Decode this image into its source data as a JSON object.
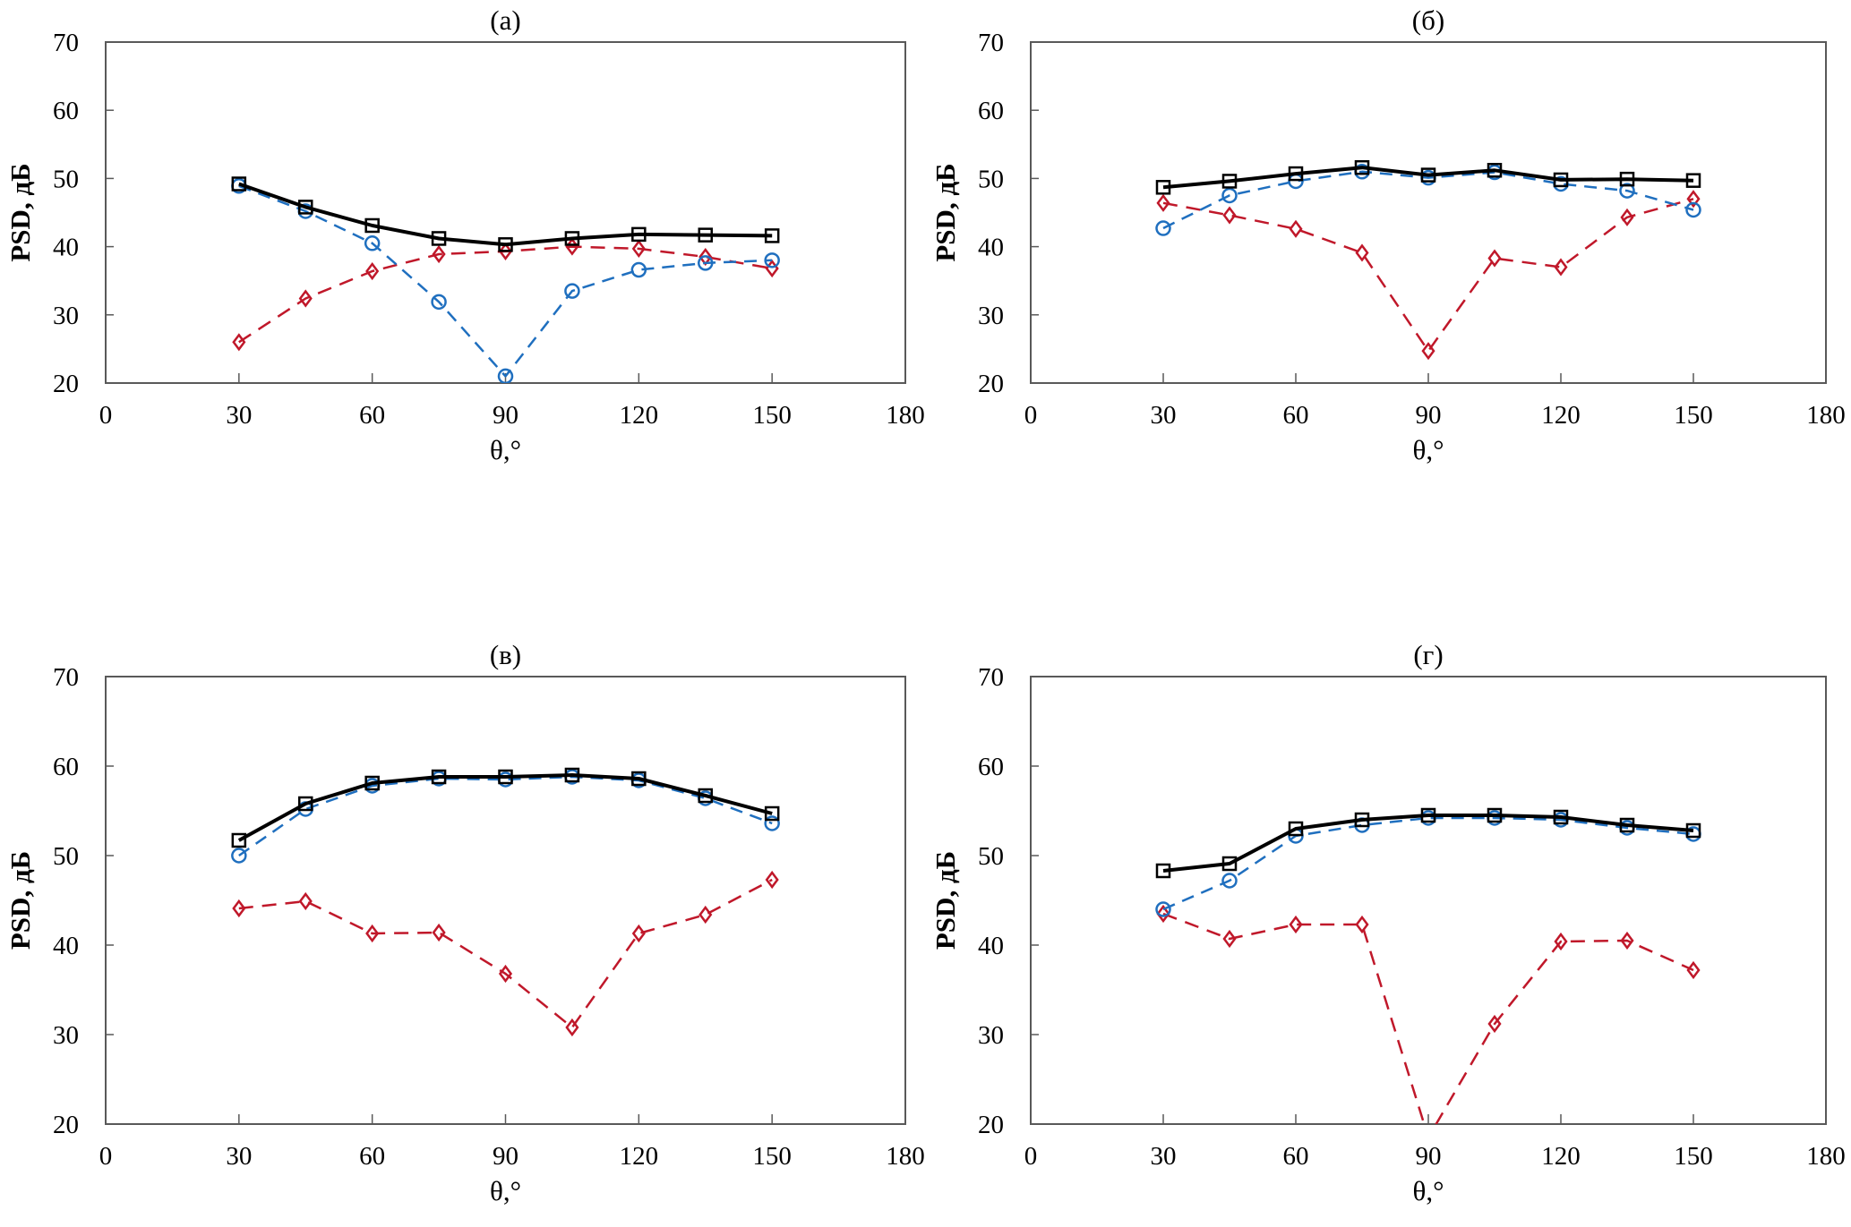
{
  "chart_data": [
    {
      "type": "line",
      "title": "(а)",
      "xlabel": "θ,°",
      "ylabel": "PSD, дБ",
      "xlim": [
        0,
        180
      ],
      "ylim": [
        20,
        70
      ],
      "xticks": [
        0,
        30,
        60,
        90,
        120,
        150,
        180
      ],
      "yticks": [
        20,
        30,
        40,
        50,
        60,
        70
      ],
      "grid": false,
      "x": [
        30,
        45,
        60,
        75,
        90,
        105,
        120,
        135,
        150
      ],
      "series": [
        {
          "name": "black-square",
          "color": "#000000",
          "style": "solid",
          "marker": "square",
          "values": [
            49.2,
            45.8,
            43.1,
            41.2,
            40.3,
            41.2,
            41.8,
            41.7,
            41.6
          ]
        },
        {
          "name": "blue-circle",
          "color": "#1f6fbf",
          "style": "dashed",
          "marker": "circle",
          "values": [
            48.9,
            45.2,
            40.5,
            31.9,
            21.0,
            33.5,
            36.6,
            37.6,
            38.0
          ]
        },
        {
          "name": "red-diamond",
          "color": "#c0182a",
          "style": "dashed",
          "marker": "diamond",
          "values": [
            26.0,
            32.4,
            36.4,
            38.9,
            39.3,
            40.0,
            39.7,
            38.5,
            36.8
          ]
        }
      ]
    },
    {
      "type": "line",
      "title": "(б)",
      "xlabel": "θ,°",
      "ylabel": "PSD, дБ",
      "xlim": [
        0,
        180
      ],
      "ylim": [
        20,
        70
      ],
      "xticks": [
        0,
        30,
        60,
        90,
        120,
        150,
        180
      ],
      "yticks": [
        20,
        30,
        40,
        50,
        60,
        70
      ],
      "grid": false,
      "x": [
        30,
        45,
        60,
        75,
        90,
        105,
        120,
        135,
        150
      ],
      "series": [
        {
          "name": "black-square",
          "color": "#000000",
          "style": "solid",
          "marker": "square",
          "values": [
            48.7,
            49.6,
            50.7,
            51.6,
            50.5,
            51.2,
            49.8,
            49.9,
            49.7
          ]
        },
        {
          "name": "blue-circle",
          "color": "#1f6fbf",
          "style": "dashed",
          "marker": "circle",
          "values": [
            42.7,
            47.5,
            49.6,
            51.0,
            50.1,
            50.9,
            49.2,
            48.2,
            45.4
          ]
        },
        {
          "name": "red-diamond",
          "color": "#c0182a",
          "style": "dashed",
          "marker": "diamond",
          "values": [
            46.4,
            44.6,
            42.6,
            39.1,
            24.7,
            38.3,
            37.0,
            44.3,
            47.0
          ]
        }
      ]
    },
    {
      "type": "line",
      "title": "(в)",
      "xlabel": "θ,°",
      "ylabel": "PSD, дБ",
      "xlim": [
        0,
        180
      ],
      "ylim": [
        20,
        70
      ],
      "xticks": [
        0,
        30,
        60,
        90,
        120,
        150,
        180
      ],
      "yticks": [
        20,
        30,
        40,
        50,
        60,
        70
      ],
      "grid": false,
      "x": [
        30,
        45,
        60,
        75,
        90,
        105,
        120,
        135,
        150
      ],
      "series": [
        {
          "name": "black-square",
          "color": "#000000",
          "style": "solid",
          "marker": "square",
          "values": [
            51.7,
            55.8,
            58.1,
            58.8,
            58.8,
            59.0,
            58.6,
            56.7,
            54.7
          ]
        },
        {
          "name": "blue-circle",
          "color": "#1f6fbf",
          "style": "dashed",
          "marker": "circle",
          "values": [
            50.0,
            55.2,
            57.8,
            58.6,
            58.5,
            58.8,
            58.4,
            56.4,
            53.6
          ]
        },
        {
          "name": "red-diamond",
          "color": "#c0182a",
          "style": "dashed",
          "marker": "diamond",
          "values": [
            44.1,
            44.9,
            41.3,
            41.4,
            36.8,
            30.8,
            41.3,
            43.4,
            47.3
          ]
        }
      ]
    },
    {
      "type": "line",
      "title": "(г)",
      "xlabel": "θ,°",
      "ylabel": "PSD, дБ",
      "xlim": [
        0,
        180
      ],
      "ylim": [
        20,
        70
      ],
      "xticks": [
        0,
        30,
        60,
        90,
        120,
        150,
        180
      ],
      "yticks": [
        20,
        30,
        40,
        50,
        60,
        70
      ],
      "grid": false,
      "x": [
        30,
        45,
        60,
        75,
        90,
        105,
        120,
        135,
        150
      ],
      "series": [
        {
          "name": "black-square",
          "color": "#000000",
          "style": "solid",
          "marker": "square",
          "values": [
            48.3,
            49.1,
            53.0,
            54.0,
            54.5,
            54.5,
            54.3,
            53.4,
            52.8
          ]
        },
        {
          "name": "blue-circle",
          "color": "#1f6fbf",
          "style": "dashed",
          "marker": "circle",
          "values": [
            44.0,
            47.2,
            52.2,
            53.4,
            54.2,
            54.2,
            54.0,
            53.1,
            52.4
          ]
        },
        {
          "name": "red-diamond",
          "color": "#c0182a",
          "style": "dashed",
          "marker": "diamond",
          "values": [
            43.5,
            40.7,
            42.3,
            42.3,
            18.5,
            31.2,
            40.4,
            40.5,
            37.2
          ]
        }
      ]
    }
  ]
}
